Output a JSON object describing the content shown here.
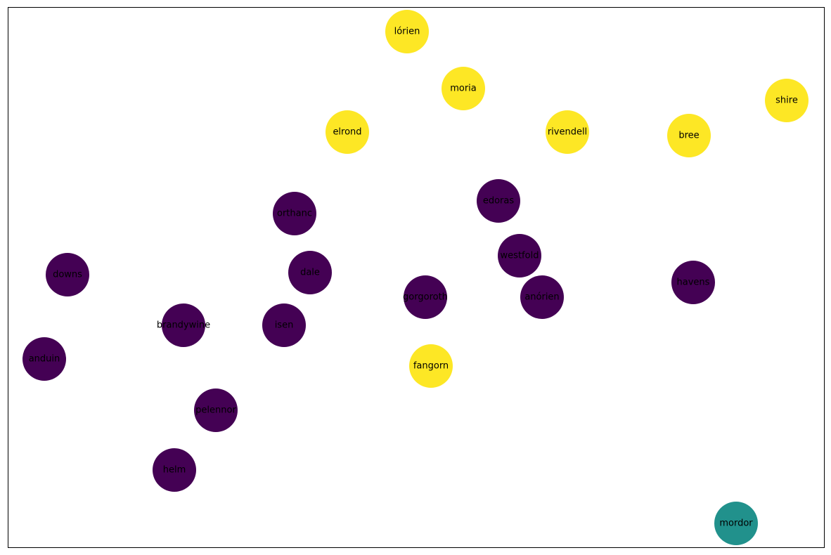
{
  "legend": [],
  "colors": {
    "group_a": "#440154",
    "group_b": "#fde725",
    "group_c": "#21918c"
  },
  "nodes": [
    {
      "id": "lórien",
      "group": "group_b"
    },
    {
      "id": "moria",
      "group": "group_b"
    },
    {
      "id": "shire",
      "group": "group_b"
    },
    {
      "id": "elrond",
      "group": "group_b"
    },
    {
      "id": "rivendell",
      "group": "group_b"
    },
    {
      "id": "bree",
      "group": "group_b"
    },
    {
      "id": "edoras",
      "group": "group_a"
    },
    {
      "id": "orthanc",
      "group": "group_a"
    },
    {
      "id": "westfold",
      "group": "group_a"
    },
    {
      "id": "downs",
      "group": "group_a"
    },
    {
      "id": "dale",
      "group": "group_a"
    },
    {
      "id": "havens",
      "group": "group_a"
    },
    {
      "id": "gorgoroth",
      "group": "group_a"
    },
    {
      "id": "anórien",
      "group": "group_a"
    },
    {
      "id": "brandywine",
      "group": "group_a"
    },
    {
      "id": "isen",
      "group": "group_a"
    },
    {
      "id": "anduin",
      "group": "group_a"
    },
    {
      "id": "fangorn",
      "group": "group_b"
    },
    {
      "id": "pelennor",
      "group": "group_a"
    },
    {
      "id": "helm",
      "group": "group_a"
    },
    {
      "id": "mordor",
      "group": "group_c"
    }
  ],
  "edges": []
}
